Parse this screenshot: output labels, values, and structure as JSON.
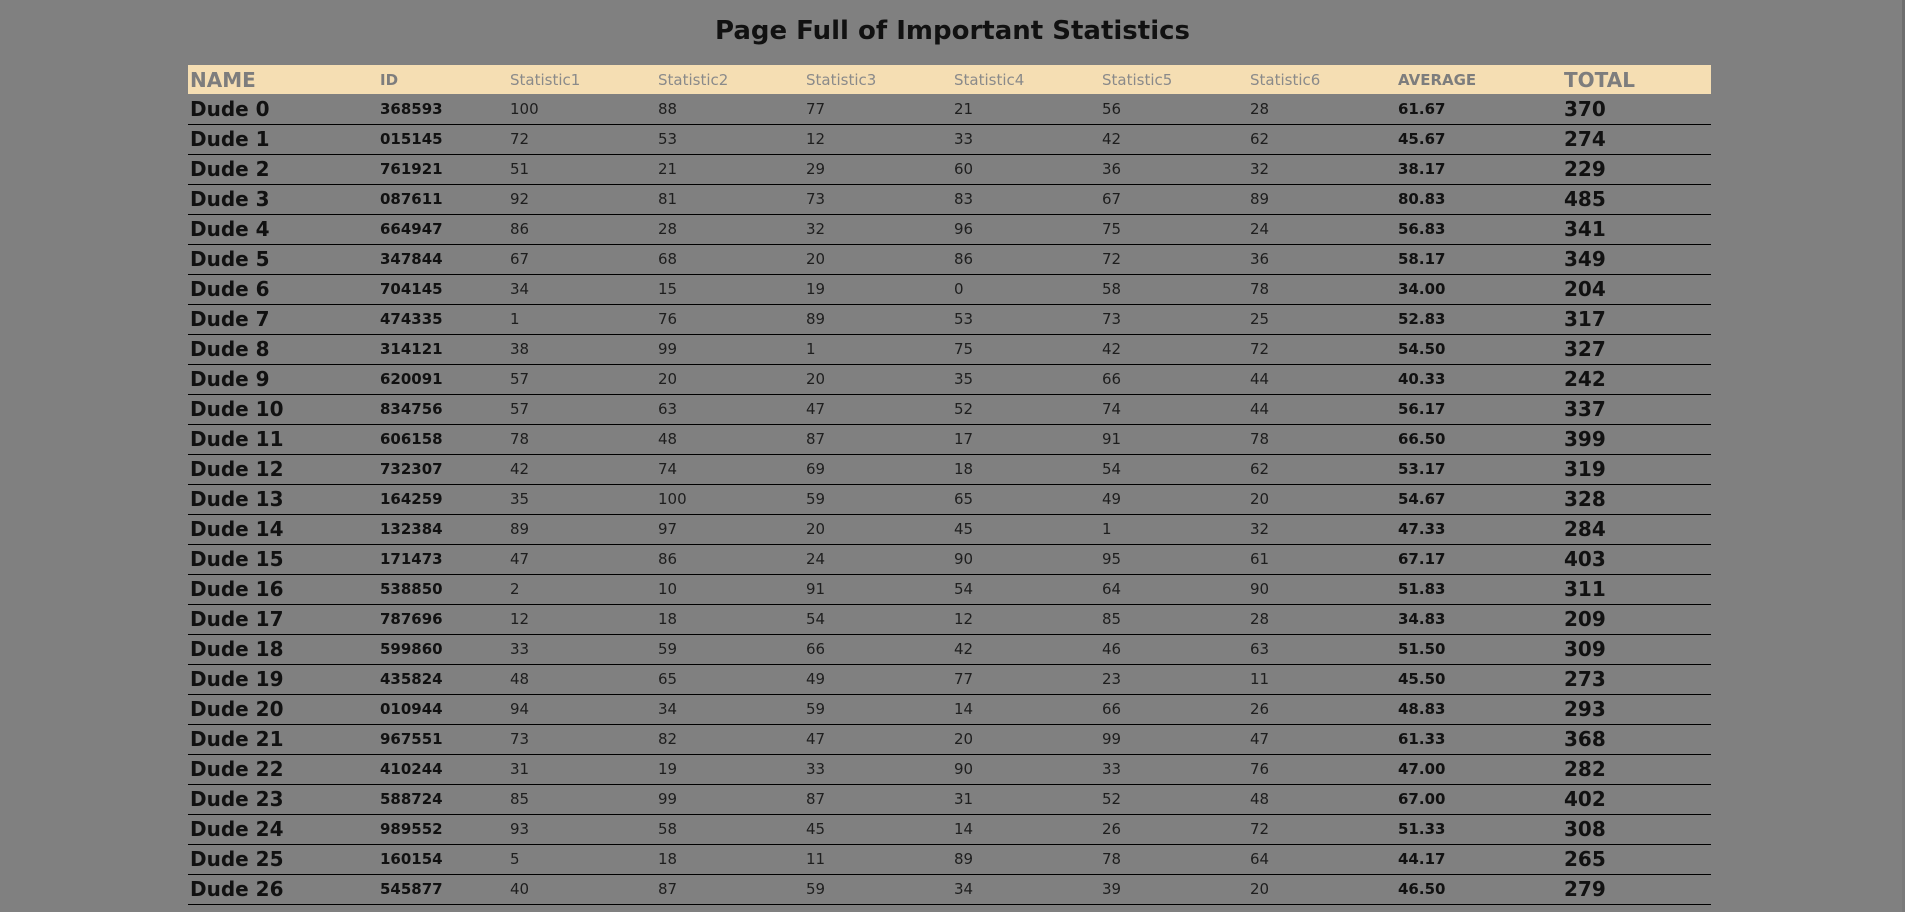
{
  "page": {
    "title": "Page Full of Important Statistics"
  },
  "colors": {
    "background": "#808080",
    "header_background": "#f5deb3",
    "header_text": "#8a8a8a",
    "row_divider": "#000000"
  },
  "table": {
    "headers": [
      "NAME",
      "ID",
      "Statistic1",
      "Statistic2",
      "Statistic3",
      "Statistic4",
      "Statistic5",
      "Statistic6",
      "AVERAGE",
      "TOTAL"
    ],
    "rows": [
      [
        "Dude 0",
        "368593",
        "100",
        "88",
        "77",
        "21",
        "56",
        "28",
        "61.67",
        "370"
      ],
      [
        "Dude 1",
        "015145",
        "72",
        "53",
        "12",
        "33",
        "42",
        "62",
        "45.67",
        "274"
      ],
      [
        "Dude 2",
        "761921",
        "51",
        "21",
        "29",
        "60",
        "36",
        "32",
        "38.17",
        "229"
      ],
      [
        "Dude 3",
        "087611",
        "92",
        "81",
        "73",
        "83",
        "67",
        "89",
        "80.83",
        "485"
      ],
      [
        "Dude 4",
        "664947",
        "86",
        "28",
        "32",
        "96",
        "75",
        "24",
        "56.83",
        "341"
      ],
      [
        "Dude 5",
        "347844",
        "67",
        "68",
        "20",
        "86",
        "72",
        "36",
        "58.17",
        "349"
      ],
      [
        "Dude 6",
        "704145",
        "34",
        "15",
        "19",
        "0",
        "58",
        "78",
        "34.00",
        "204"
      ],
      [
        "Dude 7",
        "474335",
        "1",
        "76",
        "89",
        "53",
        "73",
        "25",
        "52.83",
        "317"
      ],
      [
        "Dude 8",
        "314121",
        "38",
        "99",
        "1",
        "75",
        "42",
        "72",
        "54.50",
        "327"
      ],
      [
        "Dude 9",
        "620091",
        "57",
        "20",
        "20",
        "35",
        "66",
        "44",
        "40.33",
        "242"
      ],
      [
        "Dude 10",
        "834756",
        "57",
        "63",
        "47",
        "52",
        "74",
        "44",
        "56.17",
        "337"
      ],
      [
        "Dude 11",
        "606158",
        "78",
        "48",
        "87",
        "17",
        "91",
        "78",
        "66.50",
        "399"
      ],
      [
        "Dude 12",
        "732307",
        "42",
        "74",
        "69",
        "18",
        "54",
        "62",
        "53.17",
        "319"
      ],
      [
        "Dude 13",
        "164259",
        "35",
        "100",
        "59",
        "65",
        "49",
        "20",
        "54.67",
        "328"
      ],
      [
        "Dude 14",
        "132384",
        "89",
        "97",
        "20",
        "45",
        "1",
        "32",
        "47.33",
        "284"
      ],
      [
        "Dude 15",
        "171473",
        "47",
        "86",
        "24",
        "90",
        "95",
        "61",
        "67.17",
        "403"
      ],
      [
        "Dude 16",
        "538850",
        "2",
        "10",
        "91",
        "54",
        "64",
        "90",
        "51.83",
        "311"
      ],
      [
        "Dude 17",
        "787696",
        "12",
        "18",
        "54",
        "12",
        "85",
        "28",
        "34.83",
        "209"
      ],
      [
        "Dude 18",
        "599860",
        "33",
        "59",
        "66",
        "42",
        "46",
        "63",
        "51.50",
        "309"
      ],
      [
        "Dude 19",
        "435824",
        "48",
        "65",
        "49",
        "77",
        "23",
        "11",
        "45.50",
        "273"
      ],
      [
        "Dude 20",
        "010944",
        "94",
        "34",
        "59",
        "14",
        "66",
        "26",
        "48.83",
        "293"
      ],
      [
        "Dude 21",
        "967551",
        "73",
        "82",
        "47",
        "20",
        "99",
        "47",
        "61.33",
        "368"
      ],
      [
        "Dude 22",
        "410244",
        "31",
        "19",
        "33",
        "90",
        "33",
        "76",
        "47.00",
        "282"
      ],
      [
        "Dude 23",
        "588724",
        "85",
        "99",
        "87",
        "31",
        "52",
        "48",
        "67.00",
        "402"
      ],
      [
        "Dude 24",
        "989552",
        "93",
        "58",
        "45",
        "14",
        "26",
        "72",
        "51.33",
        "308"
      ],
      [
        "Dude 25",
        "160154",
        "5",
        "18",
        "11",
        "89",
        "78",
        "64",
        "44.17",
        "265"
      ],
      [
        "Dude 26",
        "545877",
        "40",
        "87",
        "59",
        "34",
        "39",
        "20",
        "46.50",
        "279"
      ]
    ]
  }
}
